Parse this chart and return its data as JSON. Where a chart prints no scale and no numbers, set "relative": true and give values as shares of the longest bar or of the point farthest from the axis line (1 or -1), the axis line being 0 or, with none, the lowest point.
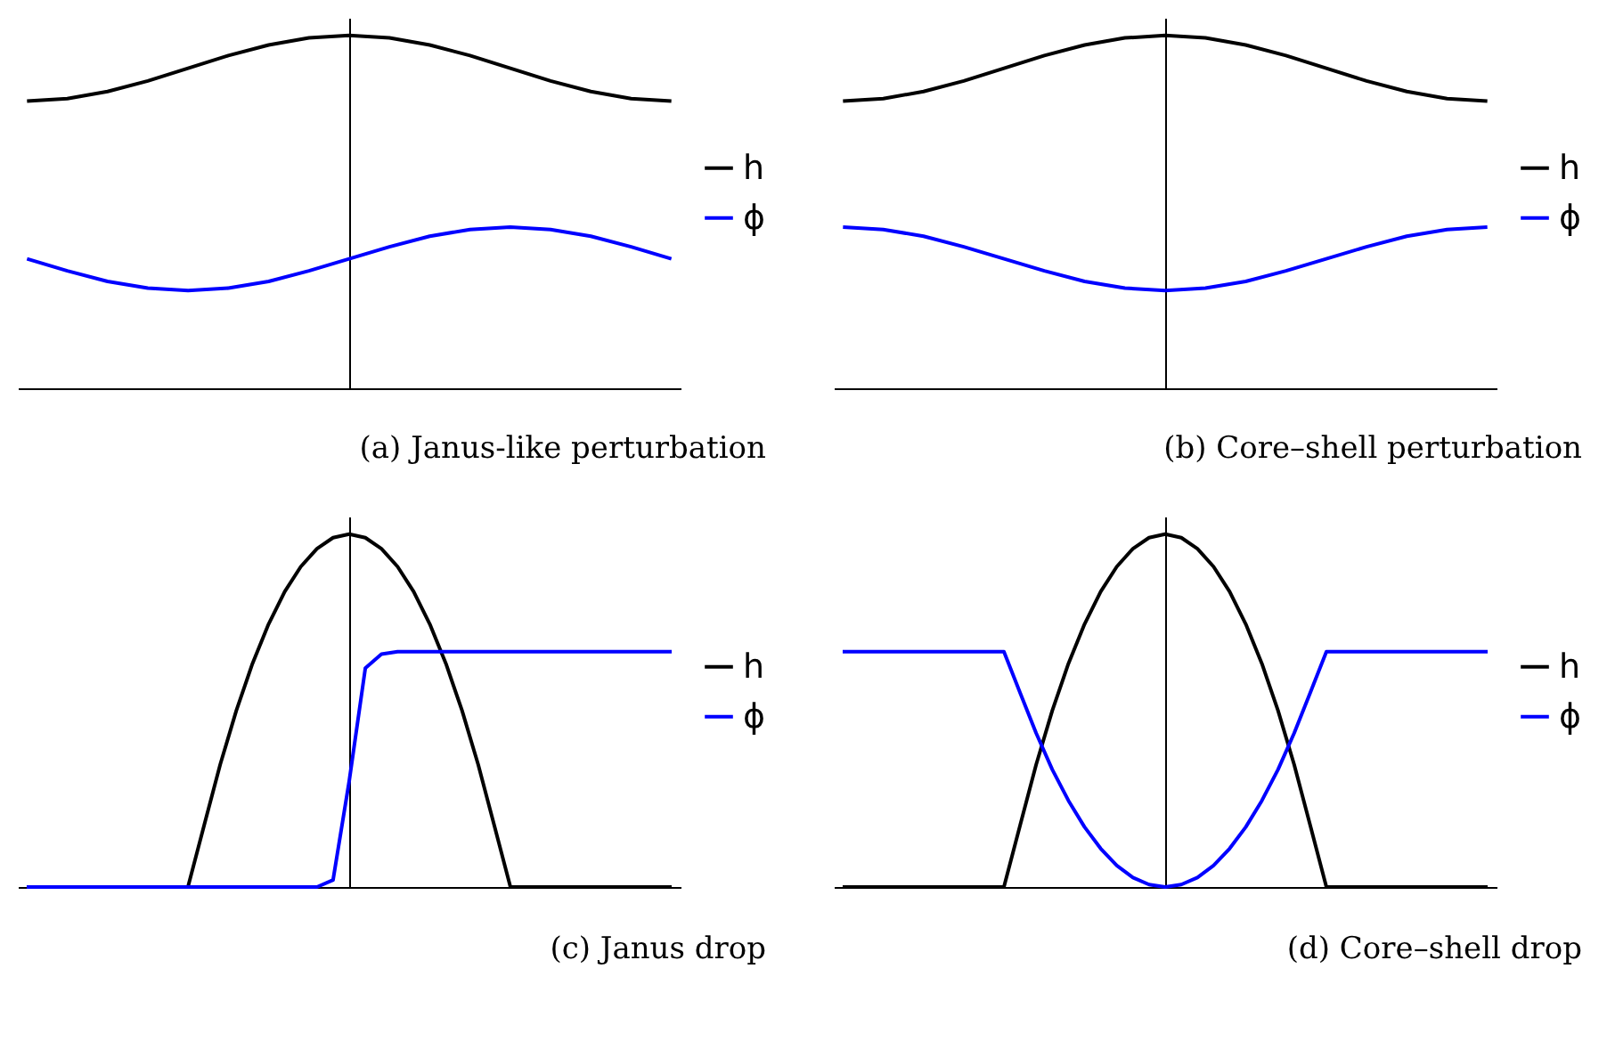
{
  "chart_data": [
    {
      "type": "line",
      "title": "(a)  Janus-like perturbation",
      "relative": true,
      "legend": "right",
      "tick_labels": false,
      "categories": [
        null,
        null,
        null,
        null,
        null,
        null,
        null,
        null,
        null,
        null,
        null,
        null,
        null,
        null,
        null,
        null,
        null
      ],
      "series": [
        {
          "name": "h",
          "color": "#000000",
          "values": [
            0.814,
            0.821,
            0.841,
            0.871,
            0.907,
            0.943,
            0.973,
            0.993,
            1,
            0.993,
            0.973,
            0.943,
            0.907,
            0.871,
            0.841,
            0.821,
            0.814
          ]
        },
        {
          "name": "ϕ",
          "color": "#0000ff",
          "values": [
            0.367,
            0.333,
            0.303,
            0.284,
            0.277,
            0.284,
            0.303,
            0.333,
            0.367,
            0.401,
            0.431,
            0.45,
            0.457,
            0.45,
            0.431,
            0.401,
            0.367
          ]
        }
      ]
    },
    {
      "type": "line",
      "title": "(b)  Core–shell perturbation",
      "relative": true,
      "legend": "right",
      "tick_labels": false,
      "categories": [
        null,
        null,
        null,
        null,
        null,
        null,
        null,
        null,
        null,
        null,
        null,
        null,
        null,
        null,
        null,
        null,
        null
      ],
      "series": [
        {
          "name": "h",
          "color": "#000000",
          "values": [
            0.814,
            0.821,
            0.841,
            0.871,
            0.907,
            0.943,
            0.973,
            0.993,
            1,
            0.993,
            0.973,
            0.943,
            0.907,
            0.871,
            0.841,
            0.821,
            0.814
          ]
        },
        {
          "name": "ϕ",
          "color": "#0000ff",
          "values": [
            0.457,
            0.45,
            0.431,
            0.401,
            0.367,
            0.333,
            0.303,
            0.284,
            0.277,
            0.284,
            0.303,
            0.333,
            0.367,
            0.401,
            0.431,
            0.45,
            0.457
          ]
        }
      ]
    },
    {
      "type": "line",
      "title": "(c)  Janus drop",
      "relative": true,
      "legend": "right",
      "tick_labels": false,
      "categories": [
        null,
        null,
        null,
        null,
        null,
        null,
        null,
        null,
        null,
        null,
        null,
        null,
        null,
        null,
        null,
        null,
        null,
        null,
        null,
        null,
        null,
        null,
        null,
        null,
        null,
        null,
        null,
        null,
        null,
        null,
        null,
        null,
        null,
        null,
        null,
        null,
        null,
        null,
        null,
        null,
        null
      ],
      "series": [
        {
          "name": "h",
          "color": "#000000",
          "values": [
            0,
            0,
            0,
            0,
            0,
            0,
            0,
            0,
            0,
            0,
            0,
            0.174,
            0.347,
            0.5,
            0.633,
            0.745,
            0.837,
            0.908,
            0.959,
            0.99,
            1,
            0.99,
            0.959,
            0.908,
            0.837,
            0.745,
            0.633,
            0.5,
            0.347,
            0.174,
            0,
            0,
            0,
            0,
            0,
            0,
            0,
            0,
            0,
            0,
            0
          ]
        },
        {
          "name": "ϕ",
          "color": "#0000ff",
          "values": [
            0,
            0,
            0,
            0,
            0,
            0,
            0,
            0,
            0,
            0,
            0,
            0,
            0,
            0,
            0,
            0,
            0,
            0,
            0,
            0.02,
            0.3,
            0.62,
            0.66,
            0.667,
            0.667,
            0.667,
            0.667,
            0.667,
            0.667,
            0.667,
            0.667,
            0.667,
            0.667,
            0.667,
            0.667,
            0.667,
            0.667,
            0.667,
            0.667,
            0.667,
            0.667
          ]
        }
      ]
    },
    {
      "type": "line",
      "title": "(d)  Core–shell drop",
      "relative": true,
      "legend": "right",
      "tick_labels": false,
      "categories": [
        null,
        null,
        null,
        null,
        null,
        null,
        null,
        null,
        null,
        null,
        null,
        null,
        null,
        null,
        null,
        null,
        null,
        null,
        null,
        null,
        null,
        null,
        null,
        null,
        null,
        null,
        null,
        null,
        null,
        null,
        null,
        null,
        null,
        null,
        null,
        null,
        null,
        null,
        null,
        null,
        null
      ],
      "series": [
        {
          "name": "h",
          "color": "#000000",
          "values": [
            0,
            0,
            0,
            0,
            0,
            0,
            0,
            0,
            0,
            0,
            0,
            0.174,
            0.347,
            0.5,
            0.633,
            0.745,
            0.837,
            0.908,
            0.959,
            0.99,
            1,
            0.99,
            0.959,
            0.908,
            0.837,
            0.745,
            0.633,
            0.5,
            0.347,
            0.174,
            0,
            0,
            0,
            0,
            0,
            0,
            0,
            0,
            0,
            0,
            0
          ]
        },
        {
          "name": "ϕ",
          "color": "#0000ff",
          "values": [
            0.667,
            0.667,
            0.667,
            0.667,
            0.667,
            0.667,
            0.667,
            0.667,
            0.667,
            0.667,
            0.667,
            0.551,
            0.436,
            0.333,
            0.245,
            0.17,
            0.109,
            0.061,
            0.027,
            0.007,
            0,
            0.007,
            0.027,
            0.061,
            0.109,
            0.17,
            0.245,
            0.333,
            0.436,
            0.551,
            0.667,
            0.667,
            0.667,
            0.667,
            0.667,
            0.667,
            0.667,
            0.667,
            0.667,
            0.667,
            0.667
          ]
        }
      ]
    }
  ]
}
